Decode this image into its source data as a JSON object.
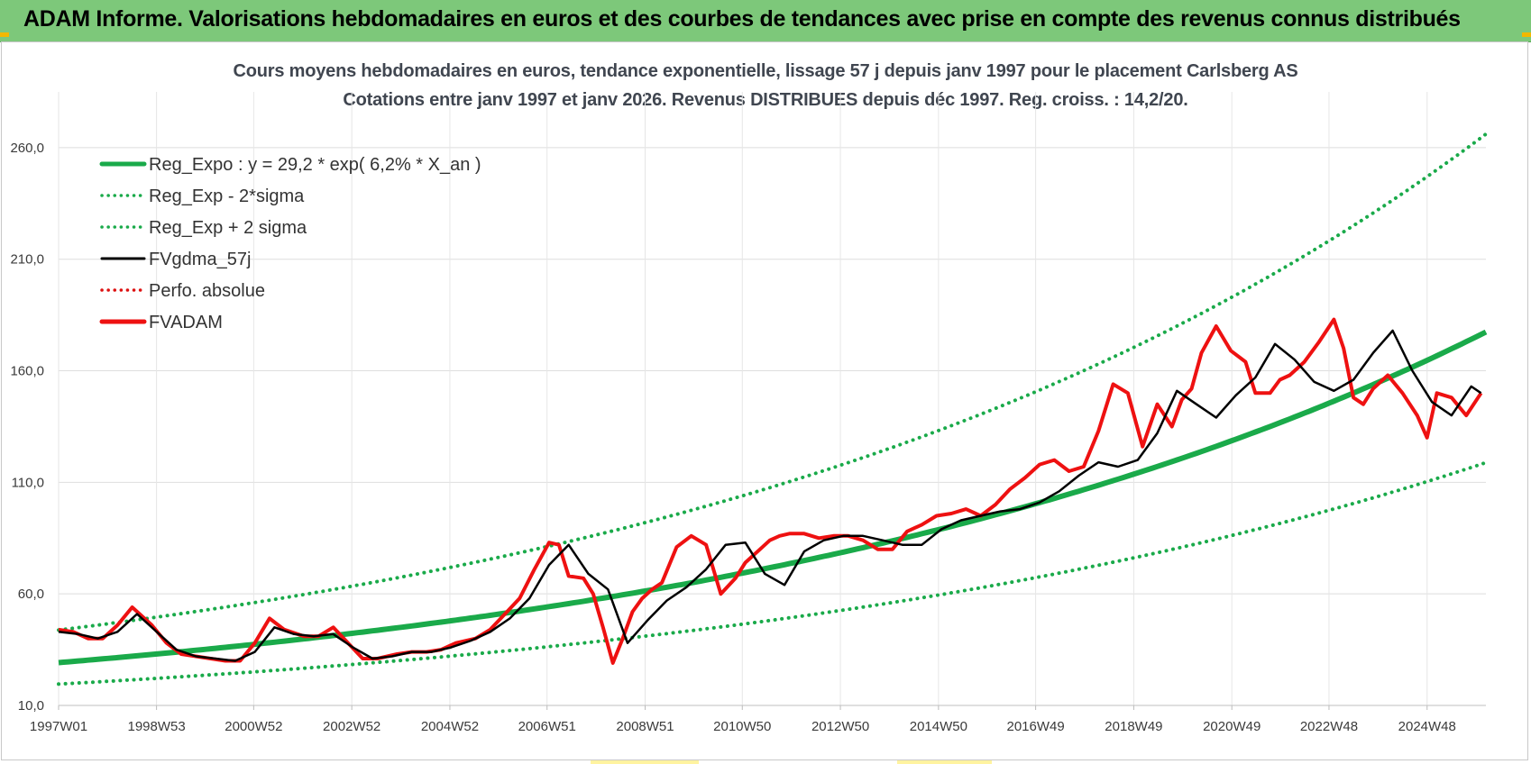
{
  "header": {
    "title": "ADAM Informe. Valorisations hebdomadaires en euros et des courbes de tendances avec prise en compte des revenus connus distribués"
  },
  "colors": {
    "header_bg": "#7dc87a",
    "reg_expo": "#1aaa4a",
    "fvgdma": "#000000",
    "fvadam": "#ee1111",
    "perfo": "#dd1111"
  },
  "chart_data": {
    "type": "line",
    "title": "Cours moyens hebdomadaires en euros, tendance exponentielle, lissage 57 j depuis janv 1997  pour le placement Carlsberg AS",
    "subtitle": "Cotations entre janv 1997 et janv 2026. Revenus DISTRIBUES depuis déc 1997.  Reg. croiss. : 14,2/20.",
    "x_tick_labels": [
      "1997W01",
      "1998W53",
      "2000W52",
      "2002W52",
      "2004W52",
      "2006W51",
      "2008W51",
      "2010W50",
      "2012W50",
      "2014W50",
      "2016W49",
      "2018W49",
      "2020W49",
      "2022W48",
      "2024W48"
    ],
    "y_tick_labels": [
      "10,0",
      "60,0",
      "110,0",
      "160,0",
      "210,0",
      "260,0"
    ],
    "ylim": [
      10,
      285
    ],
    "xlim": [
      1997.0,
      2026.1
    ],
    "grid": true,
    "legend_position": "top-left",
    "legend": [
      {
        "label": "Reg_Expo : y = 29,2 * exp( 6,2% *  X_an )",
        "style": "solid-thick",
        "color": "#1aaa4a"
      },
      {
        "label": "Reg_Exp - 2*sigma",
        "style": "dotted",
        "color": "#1aaa4a"
      },
      {
        "label": "Reg_Exp + 2 sigma",
        "style": "dotted",
        "color": "#1aaa4a"
      },
      {
        "label": "FVgdma_57j",
        "style": "solid",
        "color": "#000000"
      },
      {
        "label": "Perfo. absolue",
        "style": "dotted",
        "color": "#dd1111"
      },
      {
        "label": "FVADAM",
        "style": "solid-thick",
        "color": "#ee1111"
      }
    ],
    "regression": {
      "a": 29.2,
      "rate": 0.062,
      "x0": 1997.0,
      "minus2sigma_factor": 0.67,
      "plus2sigma_factor": 1.5
    },
    "series": [
      {
        "name": "FVADAM",
        "x": [
          1997.0,
          1997.3,
          1997.6,
          1997.9,
          1998.2,
          1998.5,
          1998.9,
          1999.2,
          1999.5,
          1999.8,
          2000.1,
          2000.4,
          2000.7,
          2001.0,
          2001.3,
          2001.6,
          2002.0,
          2002.3,
          2002.6,
          2002.9,
          2003.2,
          2003.5,
          2003.9,
          2004.2,
          2004.5,
          2004.8,
          2005.1,
          2005.5,
          2005.8,
          2006.1,
          2006.4,
          2006.7,
          2007.0,
          2007.2,
          2007.4,
          2007.7,
          2007.9,
          2008.1,
          2008.3,
          2008.5,
          2008.7,
          2008.9,
          2009.1,
          2009.3,
          2009.6,
          2009.9,
          2010.2,
          2010.5,
          2010.8,
          2011.0,
          2011.3,
          2011.5,
          2011.7,
          2011.9,
          2012.2,
          2012.5,
          2012.8,
          2013.1,
          2013.4,
          2013.7,
          2014.0,
          2014.3,
          2014.6,
          2014.9,
          2015.2,
          2015.5,
          2015.8,
          2016.1,
          2016.4,
          2016.7,
          2017.0,
          2017.3,
          2017.6,
          2017.9,
          2018.2,
          2018.5,
          2018.8,
          2019.1,
          2019.4,
          2019.7,
          2019.9,
          2020.1,
          2020.3,
          2020.6,
          2020.9,
          2021.2,
          2021.4,
          2021.7,
          2021.9,
          2022.1,
          2022.4,
          2022.7,
          2023.0,
          2023.2,
          2023.4,
          2023.6,
          2023.8,
          2024.1,
          2024.4,
          2024.7,
          2024.9,
          2025.1,
          2025.4,
          2025.7,
          2026.0
        ],
        "values": [
          44,
          43,
          40,
          40,
          46,
          54,
          46,
          38,
          33,
          32,
          31,
          30,
          30,
          38,
          49,
          44,
          41,
          41,
          45,
          38,
          31,
          31,
          33,
          34,
          34,
          35,
          38,
          40,
          44,
          51,
          58,
          71,
          83,
          82,
          68,
          67,
          60,
          45,
          29,
          40,
          52,
          58,
          62,
          65,
          81,
          86,
          82,
          60,
          67,
          74,
          80,
          84,
          86,
          87,
          87,
          85,
          86,
          86,
          84,
          80,
          80,
          88,
          91,
          95,
          96,
          98,
          95,
          100,
          107,
          112,
          118,
          120,
          115,
          117,
          133,
          154,
          150,
          126,
          145,
          135,
          147,
          152,
          168,
          180,
          169,
          164,
          150,
          150,
          156,
          158,
          164,
          173,
          183,
          170,
          148,
          145,
          152,
          158,
          150,
          140,
          130,
          150,
          148,
          140,
          150
        ]
      },
      {
        "name": "FVgdma_57j",
        "x": [
          1997.0,
          1997.4,
          1997.8,
          1998.2,
          1998.6,
          1999.0,
          1999.4,
          1999.8,
          2000.2,
          2000.6,
          2001.0,
          2001.4,
          2001.8,
          2002.2,
          2002.6,
          2003.0,
          2003.4,
          2003.8,
          2004.2,
          2004.6,
          2005.0,
          2005.4,
          2005.8,
          2006.2,
          2006.6,
          2007.0,
          2007.4,
          2007.8,
          2008.2,
          2008.6,
          2009.0,
          2009.4,
          2009.8,
          2010.2,
          2010.6,
          2011.0,
          2011.4,
          2011.8,
          2012.2,
          2012.6,
          2013.0,
          2013.4,
          2013.8,
          2014.2,
          2014.6,
          2015.0,
          2015.4,
          2015.8,
          2016.2,
          2016.6,
          2017.0,
          2017.4,
          2017.8,
          2018.2,
          2018.6,
          2019.0,
          2019.4,
          2019.8,
          2020.2,
          2020.6,
          2021.0,
          2021.4,
          2021.8,
          2022.2,
          2022.6,
          2023.0,
          2023.4,
          2023.8,
          2024.2,
          2024.6,
          2025.0,
          2025.4,
          2025.8,
          2026.0
        ],
        "values": [
          43,
          42,
          40,
          43,
          51,
          43,
          35,
          32,
          31,
          30,
          34,
          45,
          42,
          41,
          42,
          36,
          31,
          32,
          34,
          34,
          36,
          39,
          43,
          49,
          58,
          73,
          82,
          69,
          62,
          38,
          48,
          57,
          63,
          71,
          82,
          83,
          69,
          64,
          79,
          84,
          86,
          86,
          84,
          82,
          82,
          89,
          93,
          95,
          97,
          98,
          101,
          106,
          113,
          119,
          117,
          120,
          132,
          151,
          145,
          139,
          149,
          157,
          172,
          165,
          155,
          151,
          156,
          168,
          178,
          160,
          146,
          140,
          153,
          150
        ]
      },
      {
        "name": "Perfo. absolue",
        "x": [
          1997.0,
          1998.0,
          1999.0,
          2000.0,
          2001.0,
          2002.0,
          2003.0,
          2004.0,
          2005.0,
          2006.0,
          2007.0,
          2008.0,
          2009.0,
          2010.0,
          2011.0,
          2012.0,
          2013.0,
          2014.0,
          2015.0,
          2016.0,
          2017.0,
          2018.0,
          2019.0,
          2020.0,
          2021.0,
          2022.0,
          2023.0,
          2024.0,
          2025.0,
          2026.0
        ],
        "values": [
          44,
          46,
          40,
          31,
          40,
          43,
          32,
          33,
          37,
          47,
          75,
          62,
          48,
          68,
          75,
          84,
          86,
          82,
          90,
          99,
          110,
          118,
          138,
          150,
          165,
          154,
          168,
          152,
          140,
          150
        ]
      }
    ]
  }
}
